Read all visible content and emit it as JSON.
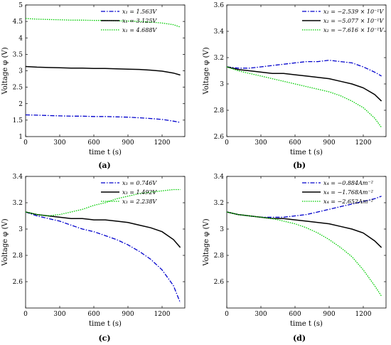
{
  "chart_data": [
    {
      "type": "line",
      "panel_label": "(a)",
      "xlabel": "time t (s)",
      "ylabel": "Voltage φ (V)",
      "xlim": [
        0,
        1400
      ],
      "ylim": [
        1,
        5
      ],
      "xticks": [
        0,
        300,
        600,
        900,
        1200
      ],
      "yticks": [
        1,
        1.5,
        2,
        2.5,
        3,
        3.5,
        4,
        4.5,
        5
      ],
      "ytick_labels": [
        "1",
        "1.5",
        "2",
        "2.5",
        "3",
        "3.5",
        "4",
        "4.5",
        "5"
      ],
      "legend_position": "top-right",
      "series": [
        {
          "name": "x₁ = 1.563V",
          "color": "#0000cc",
          "style": "dashdot",
          "x": [
            0,
            100,
            200,
            300,
            400,
            500,
            600,
            700,
            800,
            900,
            1000,
            1100,
            1200,
            1300,
            1360
          ],
          "y": [
            1.66,
            1.65,
            1.64,
            1.63,
            1.62,
            1.62,
            1.61,
            1.61,
            1.6,
            1.59,
            1.57,
            1.55,
            1.52,
            1.47,
            1.43
          ]
        },
        {
          "name": "x₁ = 3.125V",
          "color": "#000000",
          "style": "solid",
          "x": [
            0,
            100,
            200,
            300,
            400,
            500,
            600,
            700,
            800,
            900,
            1000,
            1100,
            1200,
            1300,
            1360
          ],
          "y": [
            3.13,
            3.11,
            3.1,
            3.09,
            3.08,
            3.08,
            3.07,
            3.07,
            3.06,
            3.05,
            3.04,
            3.02,
            2.99,
            2.93,
            2.87
          ]
        },
        {
          "name": "x₁ = 4.688V",
          "color": "#00cc00",
          "style": "dotted",
          "x": [
            0,
            100,
            200,
            300,
            400,
            500,
            600,
            700,
            800,
            900,
            1000,
            1100,
            1200,
            1300,
            1360
          ],
          "y": [
            4.59,
            4.57,
            4.56,
            4.55,
            4.54,
            4.54,
            4.53,
            4.53,
            4.52,
            4.51,
            4.5,
            4.48,
            4.45,
            4.4,
            4.33
          ]
        }
      ]
    },
    {
      "type": "line",
      "panel_label": "(b)",
      "xlabel": "time t (s)",
      "ylabel": "Voltage φ (V)",
      "xlim": [
        0,
        1400
      ],
      "ylim": [
        2.6,
        3.6
      ],
      "xticks": [
        0,
        300,
        600,
        900,
        1200
      ],
      "yticks": [
        2.6,
        2.8,
        3,
        3.2,
        3.4,
        3.6
      ],
      "ytick_labels": [
        "2.6",
        "2.8",
        "3",
        "3.2",
        "3.4",
        "3.6"
      ],
      "legend_position": "top-right",
      "series": [
        {
          "name": "x₂ = −2.539 × 10⁻¹V",
          "color": "#0000cc",
          "style": "dashdot",
          "x": [
            0,
            100,
            200,
            300,
            400,
            500,
            600,
            700,
            800,
            900,
            1000,
            1100,
            1200,
            1300,
            1360
          ],
          "y": [
            3.13,
            3.12,
            3.12,
            3.13,
            3.14,
            3.15,
            3.16,
            3.17,
            3.17,
            3.18,
            3.17,
            3.16,
            3.13,
            3.09,
            3.06
          ]
        },
        {
          "name": "x₂ = −5.077 × 10⁻¹V",
          "color": "#000000",
          "style": "solid",
          "x": [
            0,
            100,
            200,
            300,
            400,
            500,
            600,
            700,
            800,
            900,
            1000,
            1100,
            1200,
            1300,
            1360
          ],
          "y": [
            3.13,
            3.11,
            3.1,
            3.09,
            3.08,
            3.08,
            3.07,
            3.06,
            3.05,
            3.04,
            3.02,
            3.0,
            2.97,
            2.92,
            2.87
          ]
        },
        {
          "name": "x₂ = −7.616 × 10⁻¹V",
          "color": "#00cc00",
          "style": "dotted",
          "x": [
            0,
            100,
            200,
            300,
            400,
            500,
            600,
            700,
            800,
            900,
            1000,
            1100,
            1200,
            1300,
            1360
          ],
          "y": [
            3.13,
            3.1,
            3.08,
            3.06,
            3.04,
            3.02,
            3.0,
            2.98,
            2.96,
            2.94,
            2.91,
            2.87,
            2.82,
            2.74,
            2.67
          ]
        }
      ]
    },
    {
      "type": "line",
      "panel_label": "(c)",
      "xlabel": "time t (s)",
      "ylabel": "Voltage φ (V)",
      "xlim": [
        0,
        1400
      ],
      "ylim": [
        2.4,
        3.4
      ],
      "xticks": [
        0,
        300,
        600,
        900,
        1200
      ],
      "yticks": [
        2.6,
        2.8,
        3,
        3.2,
        3.4
      ],
      "ytick_labels": [
        "2.6",
        "2.8",
        "3",
        "3.2",
        "3.4"
      ],
      "legend_position": "top-right",
      "series": [
        {
          "name": "x₃ = 0.746V",
          "color": "#0000cc",
          "style": "dashdot",
          "x": [
            0,
            100,
            200,
            300,
            400,
            500,
            600,
            700,
            800,
            900,
            1000,
            1100,
            1200,
            1300,
            1360
          ],
          "y": [
            3.13,
            3.1,
            3.08,
            3.06,
            3.03,
            3.0,
            2.98,
            2.95,
            2.92,
            2.88,
            2.83,
            2.77,
            2.69,
            2.57,
            2.44
          ]
        },
        {
          "name": "x₃ = 1.492V",
          "color": "#000000",
          "style": "solid",
          "x": [
            0,
            100,
            200,
            300,
            400,
            500,
            600,
            700,
            800,
            900,
            1000,
            1100,
            1200,
            1300,
            1360
          ],
          "y": [
            3.13,
            3.11,
            3.1,
            3.09,
            3.08,
            3.08,
            3.07,
            3.07,
            3.06,
            3.05,
            3.03,
            3.01,
            2.98,
            2.92,
            2.86
          ]
        },
        {
          "name": "x₃ = 2.238V",
          "color": "#00cc00",
          "style": "dotted",
          "x": [
            0,
            100,
            200,
            300,
            400,
            500,
            600,
            700,
            800,
            900,
            1000,
            1100,
            1200,
            1300,
            1360
          ],
          "y": [
            3.13,
            3.11,
            3.1,
            3.11,
            3.13,
            3.15,
            3.18,
            3.2,
            3.23,
            3.25,
            3.27,
            3.28,
            3.29,
            3.3,
            3.3
          ]
        }
      ]
    },
    {
      "type": "line",
      "panel_label": "(d)",
      "xlabel": "time t (s)",
      "ylabel": "Voltage φ (V)",
      "xlim": [
        0,
        1400
      ],
      "ylim": [
        2.4,
        3.4
      ],
      "xticks": [
        0,
        300,
        600,
        900,
        1200
      ],
      "yticks": [
        2.6,
        2.8,
        3,
        3.2,
        3.4
      ],
      "ytick_labels": [
        "2.6",
        "2.8",
        "3",
        "3.2",
        "3.4"
      ],
      "legend_position": "top-right",
      "series": [
        {
          "name": "x₄ = −0.884Am⁻²",
          "color": "#0000cc",
          "style": "dashdot",
          "x": [
            0,
            100,
            200,
            300,
            400,
            500,
            600,
            700,
            800,
            900,
            1000,
            1100,
            1200,
            1300,
            1360
          ],
          "y": [
            3.13,
            3.11,
            3.1,
            3.09,
            3.09,
            3.09,
            3.1,
            3.11,
            3.13,
            3.15,
            3.17,
            3.19,
            3.21,
            3.23,
            3.25
          ]
        },
        {
          "name": "x₄ = −1.768Am⁻²",
          "color": "#000000",
          "style": "solid",
          "x": [
            0,
            100,
            200,
            300,
            400,
            500,
            600,
            700,
            800,
            900,
            1000,
            1100,
            1200,
            1300,
            1360
          ],
          "y": [
            3.13,
            3.11,
            3.1,
            3.09,
            3.08,
            3.08,
            3.07,
            3.06,
            3.05,
            3.04,
            3.02,
            3.0,
            2.97,
            2.91,
            2.86
          ]
        },
        {
          "name": "x₄ = −2.652Am⁻²",
          "color": "#00cc00",
          "style": "dotted",
          "x": [
            0,
            100,
            200,
            300,
            400,
            500,
            600,
            700,
            800,
            900,
            1000,
            1100,
            1200,
            1300,
            1360
          ],
          "y": [
            3.13,
            3.11,
            3.1,
            3.09,
            3.08,
            3.06,
            3.04,
            3.01,
            2.97,
            2.92,
            2.86,
            2.79,
            2.69,
            2.57,
            2.49
          ]
        }
      ]
    }
  ]
}
